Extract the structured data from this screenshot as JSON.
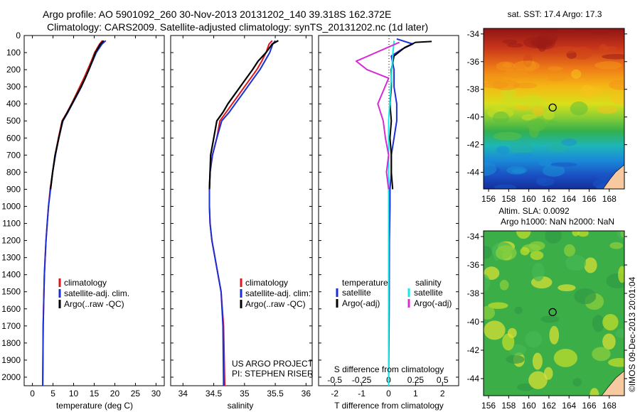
{
  "header": {
    "title_line1": "Argo profile: AO 5901092_260 30-Nov-2013 20131202_140 39.318S 162.372E",
    "title_line2": "Climatology: CARS2009. Satellite-adjusted climatology: synTS_20131202.nc (1d later)"
  },
  "colors": {
    "climatology": "#e0151b",
    "satellite": "#1a2fd6",
    "argo": "#000000",
    "sal_satellite": "#16e8e8",
    "sal_argo": "#d62ad6"
  },
  "legend_profiles": [
    "climatology",
    "satellite-adj. clim.",
    "Argo(..raw -QC)"
  ],
  "legend_diff": {
    "temperature_heading": "temperature",
    "salinity_heading": "salinity",
    "items_t": [
      "satellite",
      "Argo(-adj)"
    ],
    "items_s": [
      "satellite",
      "Argo(-adj)"
    ]
  },
  "project_note": [
    "US ARGO PROJECT",
    "PI: STEPHEN RISER"
  ],
  "depth_ticks": [
    "0",
    "100",
    "200",
    "300",
    "400",
    "500",
    "600",
    "700",
    "800",
    "900",
    "1000",
    "1100",
    "1200",
    "1300",
    "1400",
    "1500",
    "1600",
    "1700",
    "1800",
    "1900",
    "2000"
  ],
  "chart_data": [
    {
      "type": "line",
      "xlabel": "temperature (deg C)",
      "xlim": [
        -2,
        32
      ],
      "ylim": [
        0,
        2050
      ],
      "y_inverted": true,
      "xticks": [
        "0",
        "5",
        "10",
        "15",
        "20",
        "25",
        "30"
      ],
      "series": [
        {
          "name": "climatology",
          "x": [
            17.0,
            16.3,
            15.1,
            14.3,
            13.4,
            12.5,
            11.5,
            10.5,
            9.5,
            8.4,
            7.2,
            6.3,
            5.5,
            4.9,
            4.3,
            3.9,
            3.6,
            3.3,
            3.1,
            2.9,
            2.8,
            2.6,
            2.5
          ],
          "y": [
            30,
            50,
            100,
            150,
            200,
            250,
            300,
            350,
            400,
            450,
            500,
            600,
            700,
            800,
            900,
            1000,
            1100,
            1200,
            1300,
            1400,
            1500,
            1700,
            2050
          ]
        },
        {
          "name": "satellite-adj. clim.",
          "x": [
            17.8,
            16.9,
            15.5,
            14.6,
            13.7,
            12.8,
            11.9,
            10.8,
            9.7,
            8.6,
            7.4,
            6.4,
            5.6,
            4.9,
            4.4,
            3.9,
            3.6,
            3.3,
            3.1,
            2.9,
            2.8,
            2.6,
            2.5
          ],
          "y": [
            30,
            50,
            100,
            150,
            200,
            250,
            300,
            350,
            400,
            450,
            500,
            600,
            700,
            800,
            900,
            1000,
            1100,
            1200,
            1300,
            1400,
            1500,
            1700,
            2050
          ]
        },
        {
          "name": "Argo(..raw -QC)",
          "x": [
            17.3,
            16.5,
            15.3,
            14.5,
            13.7,
            12.8,
            11.8,
            10.7,
            9.6,
            8.5,
            7.3,
            6.4,
            5.5,
            4.9,
            4.4
          ],
          "y": [
            30,
            50,
            100,
            150,
            200,
            250,
            300,
            350,
            400,
            450,
            500,
            600,
            700,
            800,
            900
          ]
        }
      ]
    },
    {
      "type": "line",
      "xlabel": "salinity",
      "xlim": [
        33.8,
        36.1
      ],
      "ylim": [
        0,
        2050
      ],
      "y_inverted": true,
      "xticks": [
        "34",
        "34.5",
        "35",
        "35.5",
        "36"
      ],
      "series": [
        {
          "name": "climatology",
          "x": [
            35.45,
            35.4,
            35.35,
            35.28,
            35.2,
            35.1,
            35.0,
            34.9,
            34.8,
            34.7,
            34.6,
            34.55,
            34.48,
            34.44,
            34.43,
            34.43,
            34.44,
            34.47,
            34.52,
            34.57,
            34.62,
            34.66,
            34.68
          ],
          "y": [
            30,
            50,
            100,
            150,
            200,
            250,
            300,
            350,
            400,
            450,
            500,
            600,
            700,
            800,
            900,
            1000,
            1100,
            1200,
            1300,
            1400,
            1500,
            1700,
            2050
          ]
        },
        {
          "name": "satellite-adj. clim.",
          "x": [
            35.5,
            35.46,
            35.41,
            35.33,
            35.25,
            35.15,
            35.05,
            34.95,
            34.85,
            34.75,
            34.63,
            34.55,
            34.48,
            34.44,
            34.43,
            34.43,
            34.44,
            34.47,
            34.52,
            34.57,
            34.62,
            34.65,
            34.66
          ],
          "y": [
            30,
            50,
            100,
            150,
            200,
            250,
            300,
            350,
            400,
            450,
            500,
            600,
            700,
            800,
            900,
            1000,
            1100,
            1200,
            1300,
            1400,
            1500,
            1700,
            2050
          ]
        },
        {
          "name": "Argo(..raw -QC)",
          "x": [
            35.55,
            35.45,
            35.35,
            35.22,
            35.13,
            35.03,
            34.93,
            34.83,
            34.73,
            34.65,
            34.55,
            34.5,
            34.45,
            34.44,
            34.43
          ],
          "y": [
            30,
            50,
            100,
            150,
            200,
            250,
            300,
            350,
            400,
            450,
            500,
            600,
            700,
            800,
            900
          ]
        }
      ]
    },
    {
      "type": "line",
      "xlabel": "T difference from climatology",
      "xlabel_top": "S difference from climatology",
      "xlim": [
        -2.6,
        2.6
      ],
      "ylim": [
        0,
        2050
      ],
      "y_inverted": true,
      "xticks": [
        "-2",
        "-1",
        "0",
        "1",
        "2"
      ],
      "xticks_top": [
        "-0.5",
        "-0.25",
        "0",
        "0.25",
        "0.5"
      ],
      "series": [
        {
          "name": "T satellite",
          "x": [
            0.3,
            0.9,
            0.5,
            0.1,
            0.2,
            0.2,
            0.3,
            0.3,
            0.2,
            0.1,
            0.1,
            0.05,
            0.05,
            0.03,
            0.02,
            0.0
          ],
          "y": [
            20,
            50,
            80,
            120,
            200,
            300,
            400,
            500,
            600,
            700,
            800,
            900,
            1000,
            1200,
            1600,
            2050
          ]
        },
        {
          "name": "T Argo(-adj)",
          "x": [
            1.6,
            1.0,
            0.6,
            0.2,
            0.1,
            0.1,
            0.05,
            0.1,
            0.05,
            0.1,
            0.1,
            0.15
          ],
          "y": [
            35,
            40,
            70,
            120,
            200,
            300,
            400,
            500,
            600,
            700,
            800,
            900
          ]
        },
        {
          "name": "S satellite",
          "x": [
            0.05,
            0.04,
            0.03,
            0.02,
            0.01,
            0.0,
            0.0,
            0.0,
            0.0,
            0.0
          ],
          "y": [
            30,
            100,
            200,
            300,
            400,
            500,
            800,
            1200,
            1600,
            2050
          ]
        },
        {
          "name": "S Argo(-adj)",
          "x": [
            0.1,
            -0.3,
            -0.2,
            0.0,
            -0.1,
            -0.05,
            -0.03,
            0.0,
            -0.02,
            0.0
          ],
          "y": [
            40,
            150,
            200,
            250,
            400,
            500,
            600,
            700,
            800,
            900
          ]
        }
      ]
    },
    {
      "type": "heatmap",
      "title": "sat. SST: 17.4  Argo: 17.3",
      "xlim": [
        155.5,
        169.5
      ],
      "ylim": [
        -45.2,
        -33.6
      ],
      "xticks": [
        "156",
        "158",
        "160",
        "162",
        "164",
        "166",
        "168"
      ],
      "yticks": [
        "-34",
        "-36",
        "-38",
        "-40",
        "-42",
        "-44"
      ],
      "marker": {
        "lon": 162.37,
        "lat": -39.32
      }
    },
    {
      "type": "heatmap",
      "title": "Altim. SLA: 0.0092",
      "subtitle": "Argo h1000: NaN h2000: NaN",
      "xlim": [
        155.5,
        169.5
      ],
      "ylim": [
        -45.2,
        -33.6
      ],
      "xticks": [
        "156",
        "158",
        "160",
        "162",
        "164",
        "166",
        "168"
      ],
      "yticks": [
        "-34",
        "-36",
        "-38",
        "-40",
        "-42",
        "-44"
      ],
      "marker": {
        "lon": 162.37,
        "lat": -39.32
      }
    }
  ],
  "side_stamp": "©IMOS 09-Dec-2013 20:01:04"
}
